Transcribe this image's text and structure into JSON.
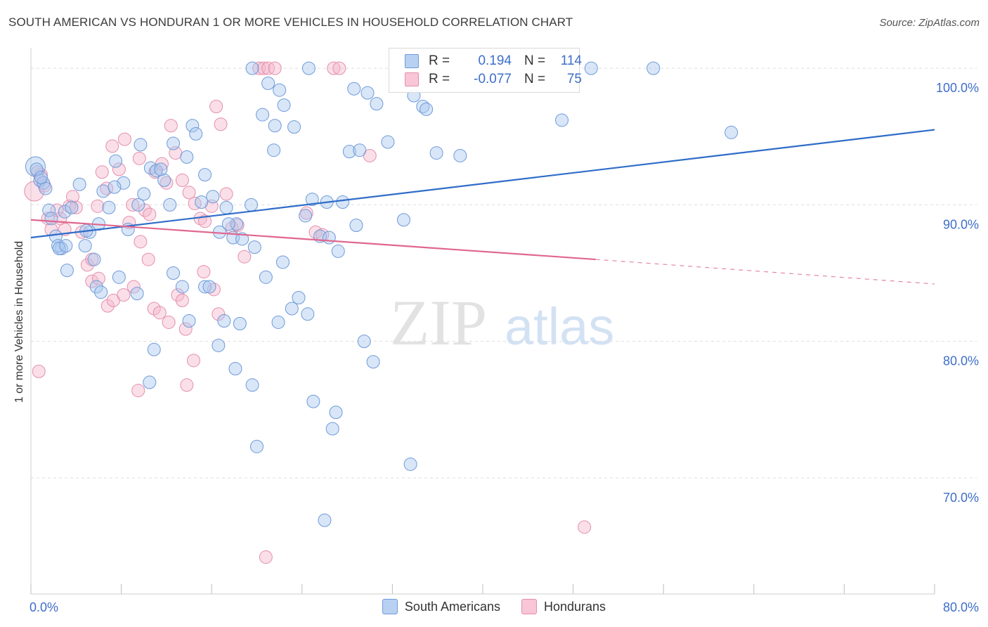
{
  "header": {
    "title": "SOUTH AMERICAN VS HONDURAN 1 OR MORE VEHICLES IN HOUSEHOLD CORRELATION CHART",
    "source": "Source: ZipAtlas.com"
  },
  "watermark": {
    "zip": "ZIP",
    "atlas": "atlas"
  },
  "legend": {
    "rows": [
      {
        "r_label": "R =",
        "r_value": "0.194",
        "n_label": "N =",
        "n_value": "114"
      },
      {
        "r_label": "R =",
        "r_value": "-0.077",
        "n_label": "N =",
        "n_value": "75"
      }
    ]
  },
  "bottom_legend": [
    "South Americans",
    "Hondurans"
  ],
  "colors": {
    "blue_fill": "#a9c7ef",
    "blue_stroke": "#6f9ad8",
    "blue_line": "#2e6cc9",
    "pink_fill": "#f5b9cc",
    "pink_stroke": "#e58fab",
    "pink_line": "#e0678f",
    "grid": "#dedede",
    "tick_text": "#3e6ec9"
  },
  "chart_data": {
    "type": "scatter",
    "title": "SOUTH AMERICAN VS HONDURAN 1 OR MORE VEHICLES IN HOUSEHOLD CORRELATION CHART",
    "xlabel": "",
    "ylabel": "1 or more Vehicles in Household",
    "xlim": [
      0,
      80
    ],
    "ylim": [
      61.5,
      101.5
    ],
    "x_tick_labels": [
      "0.0%",
      "80.0%"
    ],
    "y_ticks": [
      70,
      80,
      90,
      100
    ],
    "y_tick_labels": [
      "70.0%",
      "80.0%",
      "90.0%",
      "100.0%"
    ],
    "grid": true,
    "legend_position": "top-center",
    "series": [
      {
        "name": "South Americans",
        "r": 0.194,
        "n": 114,
        "trend": {
          "x0": 0,
          "y0": 87.6,
          "x1": 80,
          "y1": 95.5,
          "dashed_from": null
        },
        "points": [
          [
            0.4,
            92.8
          ],
          [
            0.5,
            92.6
          ],
          [
            0.8,
            91.8
          ],
          [
            1.1,
            91.6
          ],
          [
            1.3,
            91.2
          ],
          [
            0.9,
            92.0
          ],
          [
            1.6,
            89.6
          ],
          [
            2.2,
            87.7
          ],
          [
            2.7,
            86.8
          ],
          [
            2.4,
            87.0
          ],
          [
            3.0,
            89.5
          ],
          [
            3.2,
            85.2
          ],
          [
            3.6,
            89.8
          ],
          [
            4.3,
            91.5
          ],
          [
            4.8,
            87.0
          ],
          [
            5.6,
            86.0
          ],
          [
            5.2,
            88.0
          ],
          [
            6.4,
            91.0
          ],
          [
            6.9,
            89.8
          ],
          [
            7.5,
            93.2
          ],
          [
            6.0,
            88.6
          ],
          [
            8.2,
            91.6
          ],
          [
            8.6,
            88.2
          ],
          [
            9.5,
            90.0
          ],
          [
            10.0,
            90.8
          ],
          [
            10.6,
            92.7
          ],
          [
            11.1,
            92.5
          ],
          [
            11.8,
            91.8
          ],
          [
            12.3,
            90.0
          ],
          [
            12.6,
            94.5
          ],
          [
            13.8,
            93.5
          ],
          [
            14.3,
            95.8
          ],
          [
            14.6,
            95.2
          ],
          [
            15.1,
            90.2
          ],
          [
            15.4,
            92.2
          ],
          [
            16.1,
            90.6
          ],
          [
            16.7,
            88.0
          ],
          [
            17.3,
            89.8
          ],
          [
            17.9,
            87.6
          ],
          [
            18.2,
            88.6
          ],
          [
            18.7,
            87.5
          ],
          [
            19.5,
            90.0
          ],
          [
            19.8,
            86.9
          ],
          [
            20.5,
            96.6
          ],
          [
            21.5,
            94.0
          ],
          [
            21.0,
            98.9
          ],
          [
            21.6,
            95.8
          ],
          [
            22.4,
            97.3
          ],
          [
            22.0,
            98.4
          ],
          [
            23.3,
            95.7
          ],
          [
            24.3,
            89.2
          ],
          [
            24.9,
            90.4
          ],
          [
            25.6,
            87.7
          ],
          [
            26.4,
            87.6
          ],
          [
            26.2,
            90.2
          ],
          [
            27.2,
            86.6
          ],
          [
            27.6,
            90.2
          ],
          [
            28.2,
            93.9
          ],
          [
            28.6,
            98.5
          ],
          [
            28.8,
            88.5
          ],
          [
            29.1,
            94.0
          ],
          [
            29.8,
            98.2
          ],
          [
            30.6,
            97.4
          ],
          [
            31.6,
            94.6
          ],
          [
            33.9,
            98.0
          ],
          [
            34.7,
            97.2
          ],
          [
            35.0,
            97.0
          ],
          [
            35.9,
            93.8
          ],
          [
            38.0,
            93.6
          ],
          [
            47.0,
            96.2
          ],
          [
            49.6,
            100.0
          ],
          [
            55.1,
            100.0
          ],
          [
            62.0,
            95.3
          ],
          [
            19.6,
            100.0
          ],
          [
            24.6,
            100.0
          ],
          [
            5.8,
            84.0
          ],
          [
            7.8,
            84.7
          ],
          [
            9.4,
            83.5
          ],
          [
            12.6,
            85.0
          ],
          [
            13.4,
            84.0
          ],
          [
            15.4,
            84.0
          ],
          [
            16.6,
            79.7
          ],
          [
            17.1,
            81.5
          ],
          [
            18.1,
            78.0
          ],
          [
            19.6,
            76.8
          ],
          [
            20.8,
            84.7
          ],
          [
            21.9,
            81.4
          ],
          [
            22.3,
            85.8
          ],
          [
            23.1,
            82.4
          ],
          [
            23.7,
            83.2
          ],
          [
            24.5,
            82.0
          ],
          [
            25.0,
            75.6
          ],
          [
            26.7,
            73.6
          ],
          [
            27.0,
            74.8
          ],
          [
            29.5,
            80.0
          ],
          [
            30.3,
            78.5
          ],
          [
            33.0,
            88.9
          ],
          [
            33.6,
            71.0
          ],
          [
            20.0,
            72.3
          ],
          [
            26.0,
            66.9
          ],
          [
            10.9,
            79.4
          ],
          [
            10.5,
            77.0
          ],
          [
            14.0,
            81.5
          ],
          [
            6.2,
            83.6
          ],
          [
            15.8,
            84.0
          ],
          [
            18.5,
            81.3
          ],
          [
            17.5,
            88.6
          ],
          [
            2.5,
            86.8
          ],
          [
            3.1,
            87.0
          ],
          [
            1.8,
            89.0
          ],
          [
            4.9,
            88.1
          ],
          [
            7.4,
            91.3
          ],
          [
            11.5,
            92.6
          ],
          [
            9.7,
            94.4
          ]
        ]
      },
      {
        "name": "Hondurans",
        "r": -0.077,
        "n": 75,
        "trend": {
          "x0": 0,
          "y0": 88.9,
          "x1": 50,
          "y1": 86.0,
          "dashed_from": 50,
          "x_end": 80,
          "y_end": 84.2
        },
        "points": [
          [
            0.3,
            91.0
          ],
          [
            0.6,
            92.4
          ],
          [
            0.9,
            92.2
          ],
          [
            1.2,
            91.4
          ],
          [
            1.5,
            89.0
          ],
          [
            1.8,
            88.2
          ],
          [
            2.3,
            89.6
          ],
          [
            2.6,
            89.0
          ],
          [
            3.0,
            88.2
          ],
          [
            3.4,
            89.9
          ],
          [
            3.7,
            90.6
          ],
          [
            4.0,
            89.8
          ],
          [
            4.5,
            88.0
          ],
          [
            5.0,
            85.6
          ],
          [
            5.4,
            86.0
          ],
          [
            5.9,
            89.9
          ],
          [
            6.3,
            92.4
          ],
          [
            6.7,
            91.2
          ],
          [
            7.2,
            94.3
          ],
          [
            7.8,
            92.6
          ],
          [
            8.3,
            94.8
          ],
          [
            8.7,
            88.7
          ],
          [
            9.0,
            90.0
          ],
          [
            9.6,
            93.4
          ],
          [
            10.1,
            89.6
          ],
          [
            10.5,
            89.3
          ],
          [
            11.0,
            92.4
          ],
          [
            11.6,
            93.0
          ],
          [
            12.0,
            91.6
          ],
          [
            12.4,
            95.8
          ],
          [
            12.8,
            93.8
          ],
          [
            13.4,
            91.8
          ],
          [
            14.0,
            90.9
          ],
          [
            14.5,
            90.1
          ],
          [
            15.0,
            89.0
          ],
          [
            15.4,
            88.8
          ],
          [
            16.0,
            89.9
          ],
          [
            16.4,
            97.2
          ],
          [
            16.8,
            95.9
          ],
          [
            17.3,
            90.8
          ],
          [
            17.8,
            88.3
          ],
          [
            18.3,
            88.5
          ],
          [
            18.9,
            86.2
          ],
          [
            20.2,
            100.0
          ],
          [
            20.6,
            100.0
          ],
          [
            21.0,
            100.0
          ],
          [
            21.6,
            100.0
          ],
          [
            24.4,
            89.4
          ],
          [
            25.2,
            88.0
          ],
          [
            25.8,
            87.8
          ],
          [
            26.8,
            100.0
          ],
          [
            27.3,
            100.0
          ],
          [
            30.0,
            93.6
          ],
          [
            5.4,
            84.4
          ],
          [
            6.0,
            84.6
          ],
          [
            6.8,
            82.6
          ],
          [
            7.3,
            83.0
          ],
          [
            8.2,
            83.4
          ],
          [
            9.1,
            84.0
          ],
          [
            9.7,
            87.3
          ],
          [
            10.4,
            86.0
          ],
          [
            10.9,
            82.4
          ],
          [
            11.4,
            82.1
          ],
          [
            12.2,
            81.4
          ],
          [
            13.0,
            83.4
          ],
          [
            13.4,
            83.0
          ],
          [
            13.7,
            80.9
          ],
          [
            14.4,
            78.6
          ],
          [
            15.3,
            85.1
          ],
          [
            16.2,
            83.8
          ],
          [
            16.6,
            82.0
          ],
          [
            9.5,
            76.4
          ],
          [
            13.8,
            76.8
          ],
          [
            20.8,
            64.2
          ],
          [
            49.0,
            66.4
          ],
          [
            0.7,
            77.8
          ]
        ]
      }
    ]
  }
}
